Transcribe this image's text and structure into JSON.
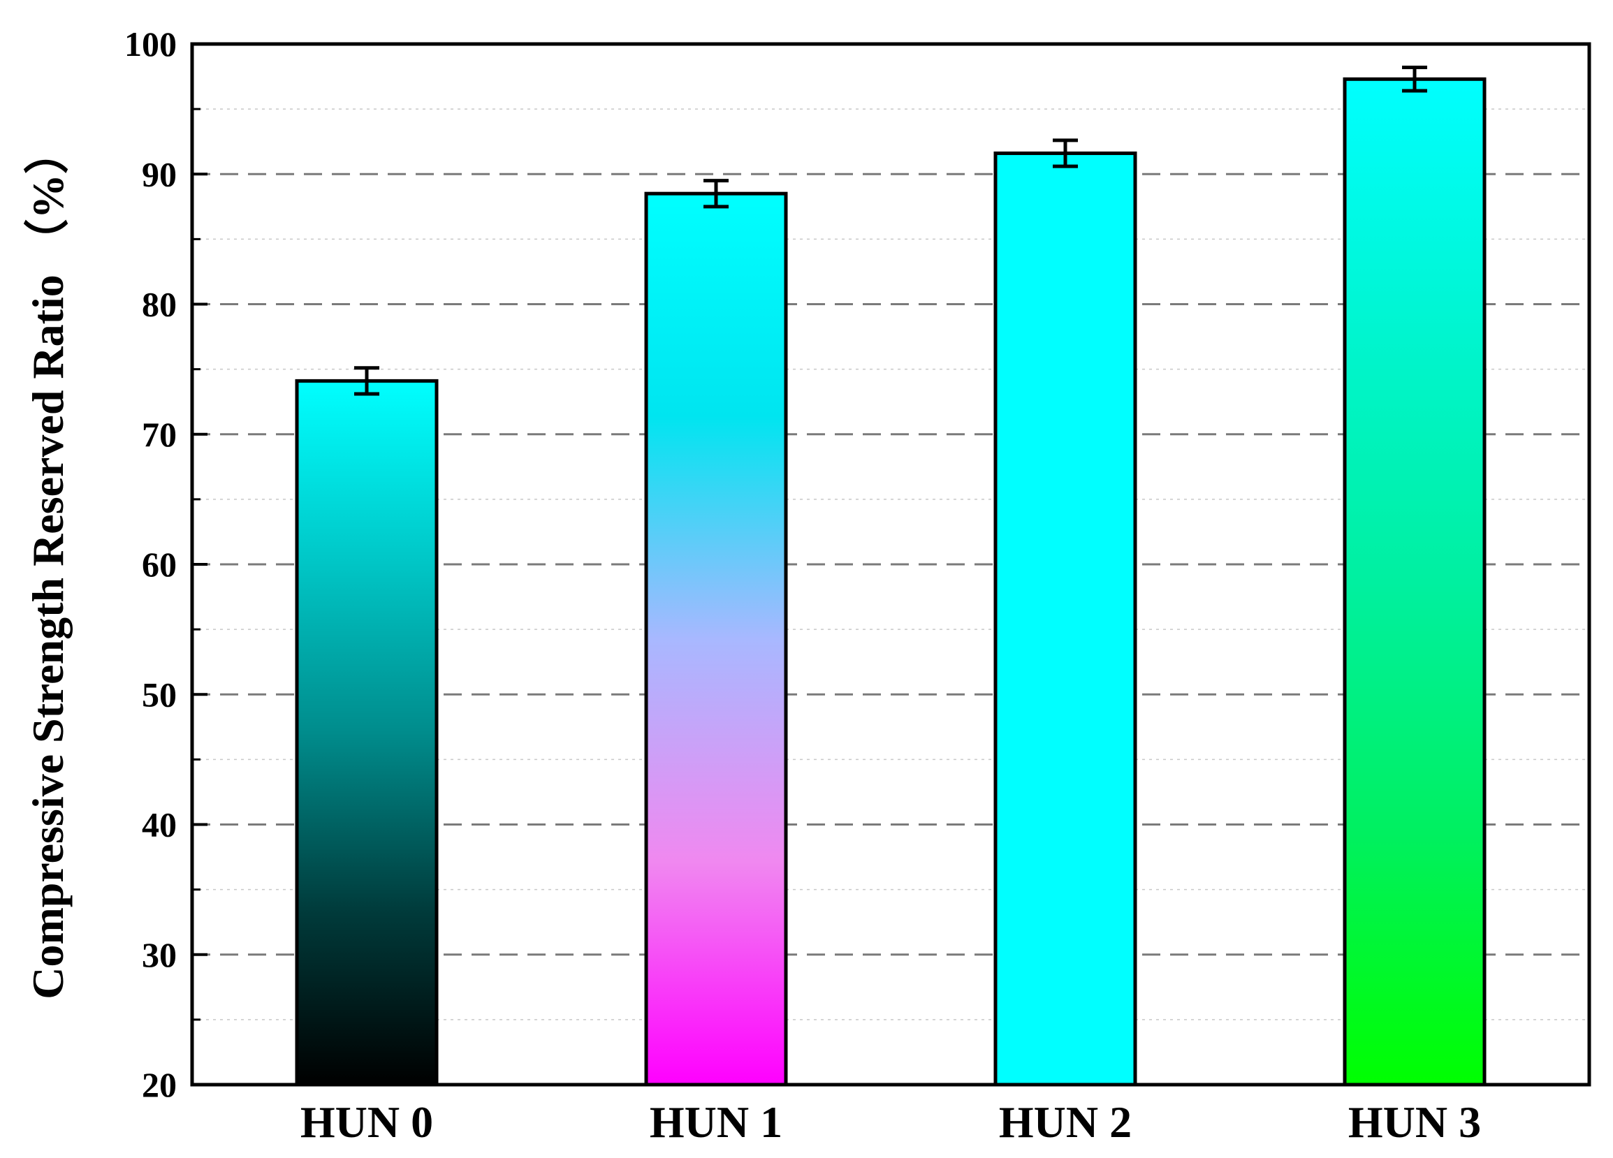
{
  "chart_data": {
    "type": "bar",
    "title": "",
    "xlabel": "",
    "ylabel": "Compressive Strength Reserved Ratio （%）",
    "ylim": [
      20,
      100
    ],
    "yticks": [
      20,
      30,
      40,
      50,
      60,
      70,
      80,
      90,
      100
    ],
    "grid": {
      "major": "dashed",
      "minor": "dotted"
    },
    "categories": [
      "HUN 0",
      "HUN 1",
      "HUN 2",
      "HUN 3"
    ],
    "values": [
      74.1,
      88.5,
      91.6,
      97.3
    ],
    "errors": [
      1.0,
      1.0,
      1.0,
      0.9
    ],
    "bar_colors": [
      {
        "top": "#00ffff",
        "bottom": "#000000",
        "stops": [
          "#00ffff",
          "#00c8c8",
          "#008c8c",
          "#003c3c",
          "#000000"
        ]
      },
      {
        "top": "#00ffff",
        "bottom": "#ff00ff",
        "stops": [
          "#00ffff",
          "#00e5f0",
          "#a8b8ff",
          "#f088f0",
          "#ff00ff"
        ]
      },
      {
        "top": "#00ffff",
        "bottom": "#00ffff",
        "stops": [
          "#00ffff",
          "#00ffff",
          "#00ffff",
          "#00ffff",
          "#00ffff"
        ]
      },
      {
        "top": "#00ffff",
        "bottom": "#00ff00",
        "stops": [
          "#00ffff",
          "#00f5d0",
          "#00f0a0",
          "#00f060",
          "#00ff00"
        ]
      }
    ]
  }
}
